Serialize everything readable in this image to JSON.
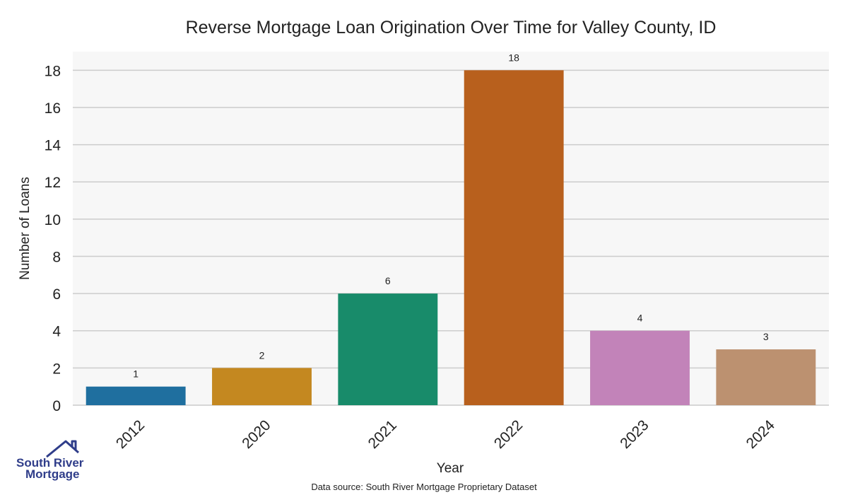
{
  "chart_data": {
    "type": "bar",
    "title": "Reverse Mortgage Loan Origination Over Time for Valley County, ID",
    "xlabel": "Year",
    "ylabel": "Number of Loans",
    "categories": [
      "2012",
      "2020",
      "2021",
      "2022",
      "2023",
      "2024"
    ],
    "values": [
      1,
      2,
      6,
      18,
      4,
      3
    ],
    "data_labels": [
      "1",
      "2",
      "6",
      "18",
      "4",
      "3"
    ],
    "colors": [
      "#1f6f9f",
      "#c48820",
      "#188b6a",
      "#b8601d",
      "#c283b9",
      "#bc9170"
    ],
    "ylim": [
      0,
      19
    ],
    "yticks": [
      0,
      2,
      4,
      6,
      8,
      10,
      12,
      14,
      16,
      18
    ],
    "grid": true,
    "legend": "none",
    "background": "#f7f7f7"
  },
  "footer": {
    "source": "Data source: South River Mortgage Proprietary Dataset"
  },
  "logo": {
    "line1": "South River",
    "line2": "Mortgage",
    "color": "#2f3d8a"
  }
}
